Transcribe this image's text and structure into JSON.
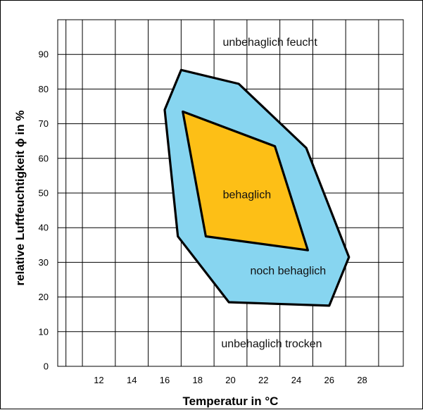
{
  "chart_data": {
    "type": "area",
    "title": "",
    "xlabel": "Temperatur in °C",
    "ylabel": "relative Luftfeuchtigkeit ϕ in %",
    "xlim": [
      9.5,
      30.5
    ],
    "ylim": [
      0,
      100
    ],
    "x_ticks": [
      12,
      14,
      16,
      18,
      20,
      22,
      24,
      26,
      28
    ],
    "y_ticks": [
      0,
      10,
      20,
      30,
      40,
      50,
      60,
      70,
      80,
      90
    ],
    "grid": true,
    "legend": "none",
    "series": [
      {
        "name": "noch behaglich",
        "color": "#87d5f0",
        "points": [
          [
            16.0,
            74
          ],
          [
            17.0,
            85.5
          ],
          [
            20.5,
            81.5
          ],
          [
            24.6,
            63
          ],
          [
            27.2,
            31.5
          ],
          [
            26.0,
            17.5
          ],
          [
            19.9,
            18.5
          ],
          [
            16.8,
            37.5
          ]
        ]
      },
      {
        "name": "behaglich",
        "color": "#fdbf16",
        "points": [
          [
            17.1,
            73.5
          ],
          [
            22.7,
            63.5
          ],
          [
            24.7,
            33.5
          ],
          [
            18.5,
            37.5
          ]
        ]
      }
    ],
    "annotations": [
      {
        "text": "unbehaglich feucht",
        "x": 22.4,
        "y": 92.5
      },
      {
        "text": "behaglich",
        "x": 21.0,
        "y": 48.5
      },
      {
        "text": "noch behaglich",
        "x": 23.5,
        "y": 26.5
      },
      {
        "text": "unbehaglich trocken",
        "x": 22.5,
        "y": 5.5
      }
    ]
  }
}
